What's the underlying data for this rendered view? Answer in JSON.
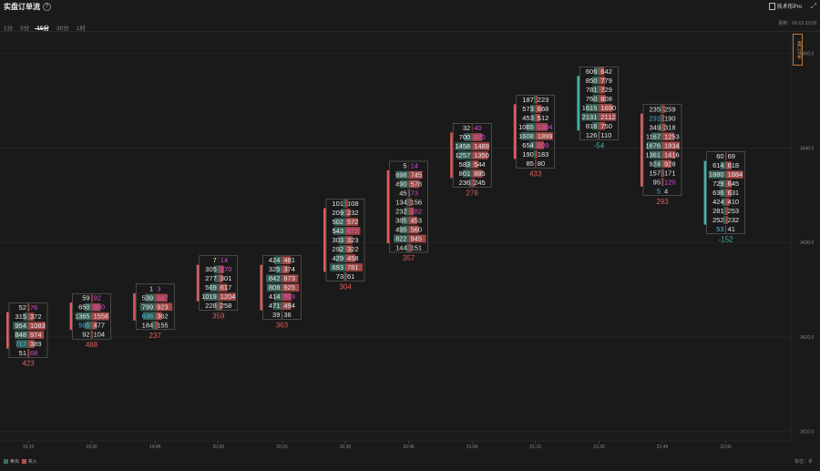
{
  "header": {
    "title": "实盘订单流",
    "pro_label": "技术形Pro"
  },
  "tabs": [
    "1分",
    "5分",
    "15分",
    "30分",
    "1时"
  ],
  "active_tab": "15分",
  "update_text": "更新：06-13 22:09",
  "side_button": "盘口分布",
  "legend": {
    "sell": "卖出",
    "buy": "买入",
    "sell_color": "#3d6b5f",
    "buy_color": "#b8504f"
  },
  "unit": "单位：手",
  "chart_data": {
    "type": "footprint",
    "ylim": [
      3409,
      3452
    ],
    "y_ticks": [
      "3410.0",
      "3420.0",
      "3430.0",
      "3440.0",
      "3450.0"
    ],
    "x_ticks": [
      "19:15",
      "19:30",
      "19:45",
      "20:00",
      "20:15",
      "20:30",
      "20:45",
      "21:00",
      "21:15",
      "21:30",
      "21:45",
      "22:00"
    ],
    "candles": [
      {
        "time": "19:15",
        "top": 3423.6,
        "sell": [
          52,
          315,
          954,
          848,
          717,
          51
        ],
        "buy": [
          76,
          372,
          1083,
          974,
          389,
          68
        ],
        "delta": "423"
      },
      {
        "time": "19:30",
        "top": 3424.6,
        "sell": [
          59,
          650,
          1365,
          595,
          92
        ],
        "buy": [
          92,
          800,
          1556,
          477,
          104
        ],
        "delta": "468"
      },
      {
        "time": "19:45",
        "top": 3425.6,
        "sell": [
          1,
          539,
          799,
          636,
          184
        ],
        "buy": [
          3,
          647,
          923,
          362,
          155
        ],
        "delta": "237"
      },
      {
        "time": "20:00",
        "top": 3428.6,
        "sell": [
          7,
          305,
          277,
          569,
          1019,
          228
        ],
        "buy": [
          14,
          370,
          301,
          617,
          1204,
          258
        ],
        "delta": "359"
      },
      {
        "time": "20:15",
        "top": 3428.6,
        "sell": [
          424,
          325,
          842,
          808,
          414,
          471,
          39
        ],
        "buy": [
          481,
          374,
          873,
          925,
          503,
          494,
          36
        ],
        "delta": "363"
      },
      {
        "time": "20:30",
        "top": 3434.6,
        "sell": [
          101,
          209,
          502,
          543,
          303,
          292,
          429,
          693,
          73
        ],
        "buy": [
          108,
          232,
          572,
          672,
          323,
          322,
          458,
          781,
          61
        ],
        "delta": "304"
      },
      {
        "time": "20:45",
        "top": 3438.6,
        "sell": [
          5,
          698,
          490,
          45,
          134,
          232,
          385,
          495,
          822,
          144
        ],
        "buy": [
          14,
          745,
          578,
          73,
          156,
          282,
          453,
          560,
          945,
          151
        ],
        "delta": "357"
      },
      {
        "time": "21:00",
        "top": 3442.6,
        "sell": [
          32,
          700,
          1458,
          1257,
          583,
          801,
          236
        ],
        "buy": [
          40,
          870,
          1489,
          1350,
          544,
          885,
          245
        ],
        "delta": "276"
      },
      {
        "time": "21:15",
        "top": 3445.6,
        "sell": [
          187,
          573,
          453,
          1065,
          1608,
          654,
          190,
          85
        ],
        "buy": [
          223,
          668,
          512,
          1304,
          1899,
          909,
          183,
          80
        ],
        "delta": "433"
      },
      {
        "time": "21:30",
        "top": 3448.6,
        "sell": [
          606,
          850,
          781,
          760,
          1615,
          2131,
          816,
          126
        ],
        "buy": [
          642,
          779,
          729,
          808,
          1690,
          2112,
          750,
          110
        ],
        "delta": "-54"
      },
      {
        "time": "21:45",
        "top": 3444.6,
        "sell": [
          235,
          231,
          349,
          1167,
          1676,
          1361,
          924,
          157,
          95,
          5
        ],
        "buy": [
          259,
          190,
          318,
          1253,
          1834,
          1416,
          928,
          171,
          120,
          4
        ],
        "delta": "293"
      },
      {
        "time": "22:00",
        "top": 3439.6,
        "sell": [
          60,
          614,
          1880,
          729,
          636,
          424,
          281,
          252,
          53
        ],
        "buy": [
          69,
          618,
          1884,
          645,
          631,
          410,
          253,
          232,
          41
        ],
        "delta": "-152"
      }
    ]
  }
}
